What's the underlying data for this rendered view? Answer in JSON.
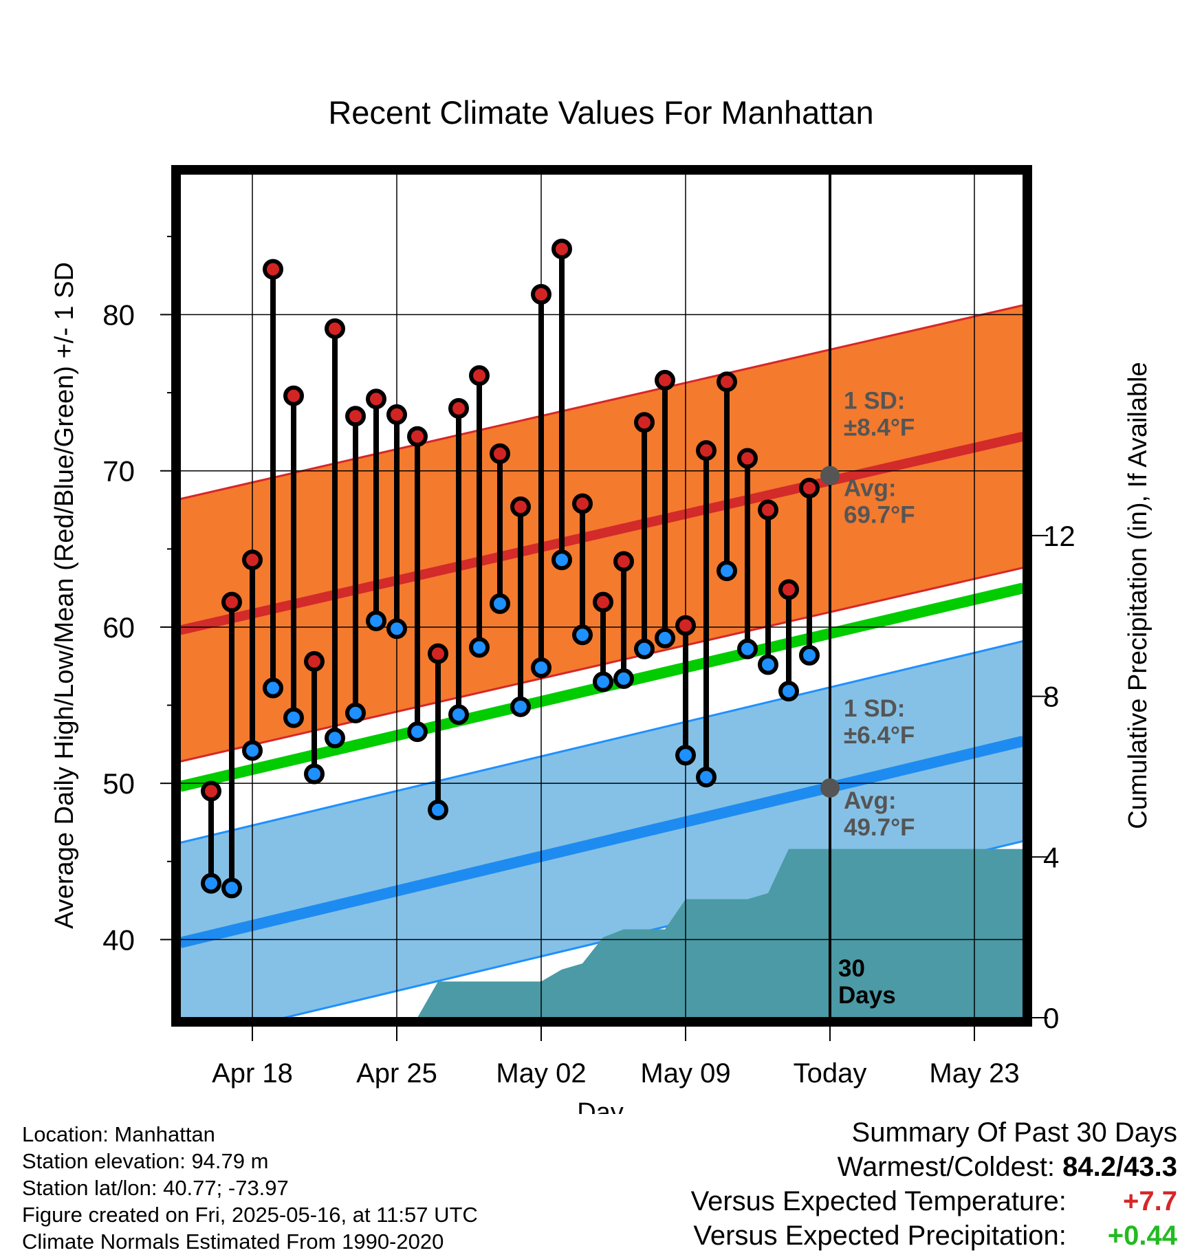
{
  "chart_data": {
    "type": "line",
    "title": "Recent Climate Values For Manhattan",
    "xlabel": "Day",
    "ylabel": "Average Daily High/Low/Mean (Red/Blue/Green) +/- 1 SD",
    "y2label": "Cumulative Precipitation (in), If Available",
    "x_range": [
      "2025-04-14",
      "2025-05-27"
    ],
    "ylim": [
      35,
      89
    ],
    "y2lim": [
      0,
      21
    ],
    "y_ticks": [
      40,
      50,
      60,
      70,
      80
    ],
    "y2_ticks": [
      0,
      4,
      8,
      12
    ],
    "x_ticks": [
      {
        "date": "2025-04-18",
        "label": "Apr 18"
      },
      {
        "date": "2025-04-25",
        "label": "Apr 25"
      },
      {
        "date": "2025-05-02",
        "label": "May 02"
      },
      {
        "date": "2025-05-09",
        "label": "May 09"
      },
      {
        "date": "2025-05-16",
        "label": "Today"
      },
      {
        "date": "2025-05-23",
        "label": "May 23"
      }
    ],
    "grid": true,
    "today": "2025-05-16",
    "today_label": "30\nDays",
    "normals": {
      "dates": [
        "2025-04-14",
        "2025-05-27"
      ],
      "avg_high": [
        59.8,
        72.2
      ],
      "avg_high_sd": 8.4,
      "avg_low": [
        39.8,
        52.7
      ],
      "avg_low_sd": 6.4,
      "avg_mean": [
        49.8,
        62.5
      ]
    },
    "annotations": {
      "high_sd": "1 SD:\n±8.4°F",
      "high_avg": "Avg:\n69.7°F",
      "high_avg_value": 69.7,
      "low_sd": "1 SD:\n±6.4°F",
      "low_avg": "Avg:\n49.7°F",
      "low_avg_value": 49.7
    },
    "daily": [
      {
        "date": "2025-04-16",
        "high": 49.5,
        "low": 43.6
      },
      {
        "date": "2025-04-17",
        "high": 61.6,
        "low": 43.3
      },
      {
        "date": "2025-04-18",
        "high": 64.3,
        "low": 52.1
      },
      {
        "date": "2025-04-19",
        "high": 82.9,
        "low": 56.1
      },
      {
        "date": "2025-04-20",
        "high": 74.8,
        "low": 54.2
      },
      {
        "date": "2025-04-21",
        "high": 57.8,
        "low": 50.6
      },
      {
        "date": "2025-04-22",
        "high": 79.1,
        "low": 52.9
      },
      {
        "date": "2025-04-23",
        "high": 73.5,
        "low": 54.5
      },
      {
        "date": "2025-04-24",
        "high": 74.6,
        "low": 60.4
      },
      {
        "date": "2025-04-25",
        "high": 73.6,
        "low": 59.9
      },
      {
        "date": "2025-04-26",
        "high": 72.2,
        "low": 53.3
      },
      {
        "date": "2025-04-27",
        "high": 58.3,
        "low": 48.3
      },
      {
        "date": "2025-04-28",
        "high": 74.0,
        "low": 54.4
      },
      {
        "date": "2025-04-29",
        "high": 76.1,
        "low": 58.7
      },
      {
        "date": "2025-04-30",
        "high": 71.1,
        "low": 61.5
      },
      {
        "date": "2025-05-01",
        "high": 67.7,
        "low": 54.9
      },
      {
        "date": "2025-05-02",
        "high": 81.3,
        "low": 57.4
      },
      {
        "date": "2025-05-03",
        "high": 84.2,
        "low": 64.3
      },
      {
        "date": "2025-05-04",
        "high": 67.9,
        "low": 59.5
      },
      {
        "date": "2025-05-05",
        "high": 61.6,
        "low": 56.5
      },
      {
        "date": "2025-05-06",
        "high": 64.2,
        "low": 56.7
      },
      {
        "date": "2025-05-07",
        "high": 73.1,
        "low": 58.6
      },
      {
        "date": "2025-05-08",
        "high": 75.8,
        "low": 59.3
      },
      {
        "date": "2025-05-09",
        "high": 60.1,
        "low": 51.8
      },
      {
        "date": "2025-05-10",
        "high": 71.3,
        "low": 50.4
      },
      {
        "date": "2025-05-11",
        "high": 75.7,
        "low": 63.6
      },
      {
        "date": "2025-05-12",
        "high": 70.8,
        "low": 58.6
      },
      {
        "date": "2025-05-13",
        "high": 67.5,
        "low": 57.6
      },
      {
        "date": "2025-05-14",
        "high": 62.4,
        "low": 55.9
      },
      {
        "date": "2025-05-15",
        "high": 68.9,
        "low": 58.2
      }
    ],
    "cumulative_precip": [
      {
        "date": "2025-04-14",
        "value": 0
      },
      {
        "date": "2025-04-26",
        "value": 0
      },
      {
        "date": "2025-04-27",
        "value": 0.9
      },
      {
        "date": "2025-05-02",
        "value": 0.9
      },
      {
        "date": "2025-05-03",
        "value": 1.2
      },
      {
        "date": "2025-05-04",
        "value": 1.35
      },
      {
        "date": "2025-05-05",
        "value": 2.0
      },
      {
        "date": "2025-05-06",
        "value": 2.2
      },
      {
        "date": "2025-05-08",
        "value": 2.2
      },
      {
        "date": "2025-05-09",
        "value": 2.95
      },
      {
        "date": "2025-05-12",
        "value": 2.95
      },
      {
        "date": "2025-05-13",
        "value": 3.1
      },
      {
        "date": "2025-05-14",
        "value": 4.2
      },
      {
        "date": "2025-05-27",
        "value": 4.2
      }
    ],
    "colors": {
      "high_band": "#f47a2e",
      "high_band_edge": "#d62728",
      "high_avg_line": "#d32a2a",
      "low_band": "#85c1e6",
      "low_band_edge": "#1e90ff",
      "low_avg_line": "#1e8bf0",
      "mean_line": "#00cc00",
      "precip": "#4b9aa5",
      "high_marker": "#d32424",
      "low_marker": "#1e90ff",
      "annotation_text": "#555555"
    }
  },
  "footer": {
    "location": "Location: Manhattan",
    "elevation": "Station elevation: 94.79 m",
    "latlon": "Station lat/lon: 40.77; -73.97",
    "created": "Figure created on Fri, 2025-05-16, at 11:57 UTC",
    "normals": "Climate Normals Estimated From 1990-2020"
  },
  "summary": {
    "title": "Summary Of Past 30 Days",
    "warm_cold_label": "Warmest/Coldest:",
    "warm_cold_value": "84.2/43.3",
    "temp_label": "Versus Expected Temperature:",
    "temp_value": "+7.7",
    "temp_color": "#d62728",
    "precip_label": "Versus Expected Precipitation:",
    "precip_value": "+0.44",
    "precip_color": "#22bb22"
  }
}
